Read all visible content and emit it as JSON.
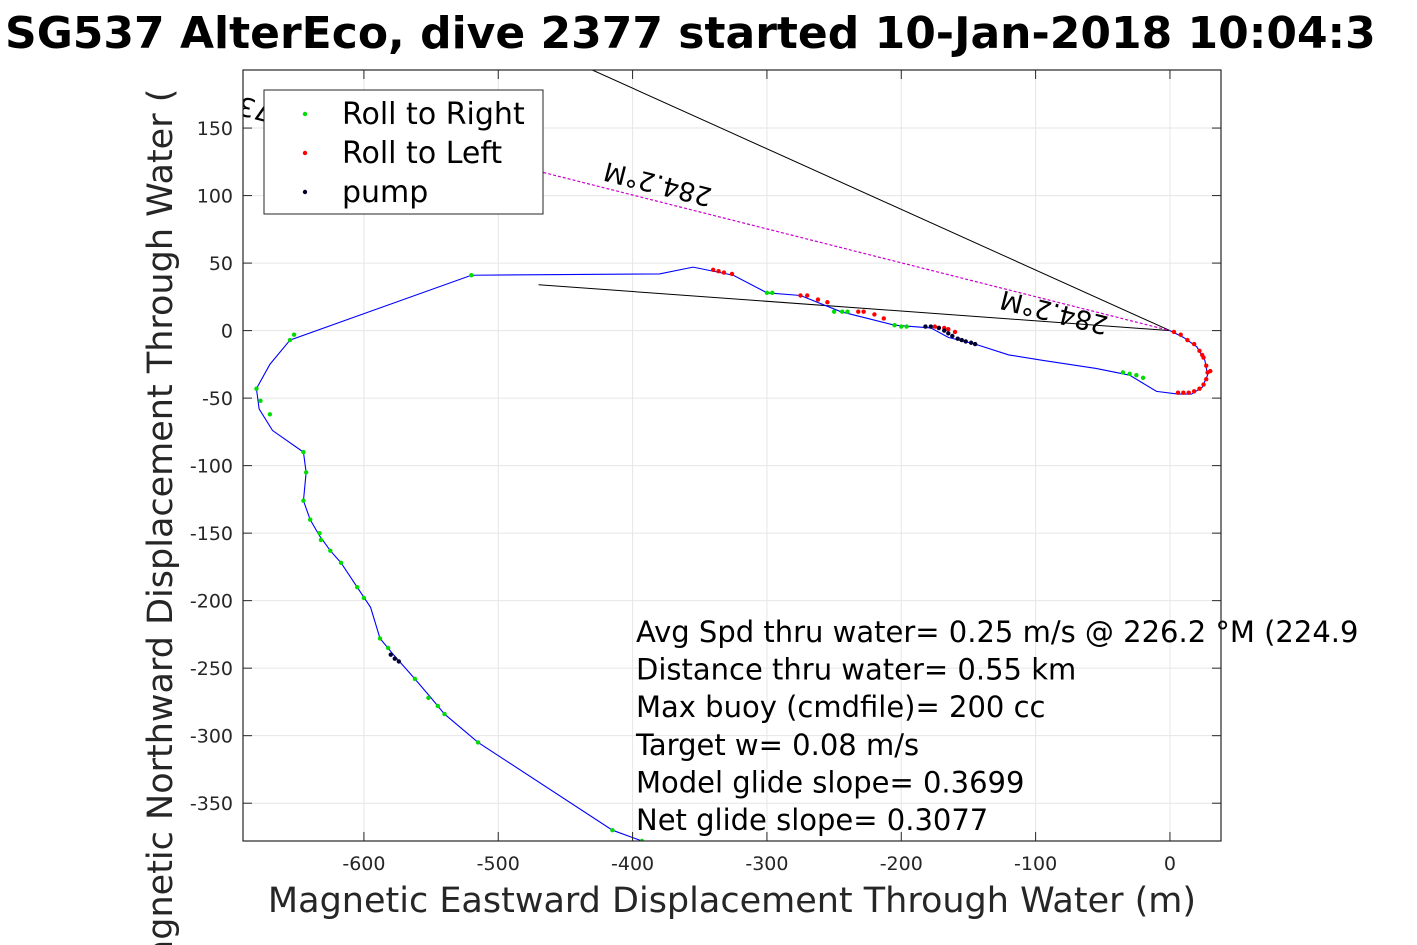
{
  "chart_data": {
    "type": "scatter",
    "title": "SG537 AlterEco, dive 2377 started 10-Jan-2018 10:04:3",
    "xlabel": "Magnetic Eastward Displacement Through Water (m)",
    "ylabel": "Magnetic Northward Displacement Through Water (",
    "xlim": [
      -690,
      38
    ],
    "ylim": [
      -378,
      193
    ],
    "xticks": [
      -600,
      -500,
      -400,
      -300,
      -200,
      -100,
      0
    ],
    "yticks": [
      -350,
      -300,
      -250,
      -200,
      -150,
      -100,
      -50,
      0,
      50,
      100,
      150
    ],
    "grid": true,
    "legend_position": "top-left",
    "legend": [
      {
        "name": "Roll to Right",
        "color": "#00dd00"
      },
      {
        "name": "Roll to Left",
        "color": "#ff0000"
      },
      {
        "name": "pump",
        "color": "#000033"
      }
    ],
    "track_color": "#0000ff",
    "track": [
      [
        0,
        0
      ],
      [
        10,
        -5
      ],
      [
        20,
        -12
      ],
      [
        26,
        -22
      ],
      [
        28,
        -33
      ],
      [
        24,
        -42
      ],
      [
        16,
        -47
      ],
      [
        6,
        -47
      ],
      [
        -10,
        -45
      ],
      [
        -30,
        -33
      ],
      [
        -55,
        -28
      ],
      [
        -95,
        -22
      ],
      [
        -120,
        -18
      ],
      [
        -145,
        -10
      ],
      [
        -165,
        -5
      ],
      [
        -178,
        2
      ],
      [
        -205,
        4
      ],
      [
        -225,
        9
      ],
      [
        -245,
        14
      ],
      [
        -275,
        26
      ],
      [
        -300,
        28
      ],
      [
        -325,
        41
      ],
      [
        -355,
        47
      ],
      [
        -380,
        42
      ],
      [
        -520,
        41
      ],
      [
        -655,
        -7
      ],
      [
        -670,
        -25
      ],
      [
        -680,
        -43
      ],
      [
        -678,
        -58
      ],
      [
        -668,
        -74
      ],
      [
        -645,
        -90
      ],
      [
        -643,
        -105
      ],
      [
        -645,
        -126
      ],
      [
        -640,
        -140
      ],
      [
        -633,
        -152
      ],
      [
        -625,
        -163
      ],
      [
        -617,
        -172
      ],
      [
        -605,
        -190
      ],
      [
        -595,
        -205
      ],
      [
        -588,
        -228
      ],
      [
        -578,
        -240
      ],
      [
        -562,
        -258
      ],
      [
        -550,
        -272
      ],
      [
        -540,
        -284
      ],
      [
        -515,
        -305
      ],
      [
        -415,
        -370
      ],
      [
        -393,
        -378
      ]
    ],
    "roll_right": [
      [
        -680,
        -43
      ],
      [
        -677,
        -52
      ],
      [
        -670,
        -62
      ],
      [
        -655,
        -7
      ],
      [
        -652,
        -3
      ],
      [
        -520,
        41
      ],
      [
        -645,
        -90
      ],
      [
        -643,
        -105
      ],
      [
        -645,
        -126
      ],
      [
        -640,
        -140
      ],
      [
        -633,
        -150
      ],
      [
        -632,
        -155
      ],
      [
        -625,
        -163
      ],
      [
        -617,
        -172
      ],
      [
        -605,
        -190
      ],
      [
        -600,
        -198
      ],
      [
        -588,
        -228
      ],
      [
        -582,
        -235
      ],
      [
        -562,
        -258
      ],
      [
        -552,
        -272
      ],
      [
        -545,
        -278
      ],
      [
        -540,
        -284
      ],
      [
        -515,
        -305
      ],
      [
        -415,
        -370
      ],
      [
        -393,
        -378
      ],
      [
        -300,
        28
      ],
      [
        -296,
        28
      ],
      [
        -250,
        14
      ],
      [
        -244,
        14
      ],
      [
        -240,
        14
      ],
      [
        -205,
        4
      ],
      [
        -200,
        3
      ],
      [
        -196,
        3
      ],
      [
        -35,
        -31
      ],
      [
        -30,
        -32
      ],
      [
        -25,
        -33
      ],
      [
        -20,
        -35
      ]
    ],
    "roll_left": [
      [
        -340,
        45
      ],
      [
        -336,
        44
      ],
      [
        -332,
        43
      ],
      [
        -326,
        42
      ],
      [
        -275,
        26
      ],
      [
        -270,
        26
      ],
      [
        -262,
        23
      ],
      [
        -255,
        21
      ],
      [
        -232,
        14
      ],
      [
        -228,
        14
      ],
      [
        -220,
        12
      ],
      [
        -213,
        9
      ],
      [
        -168,
        2
      ],
      [
        -165,
        1
      ],
      [
        -160,
        -1
      ],
      [
        -175,
        3
      ],
      [
        -172,
        2
      ],
      [
        3,
        -1
      ],
      [
        8,
        -3
      ],
      [
        13,
        -7
      ],
      [
        18,
        -10
      ],
      [
        22,
        -15
      ],
      [
        25,
        -20
      ],
      [
        27,
        -26
      ],
      [
        28,
        -31
      ],
      [
        27,
        -36
      ],
      [
        25,
        -40
      ],
      [
        22,
        -43
      ],
      [
        18,
        -45
      ],
      [
        14,
        -46
      ],
      [
        10,
        -46
      ],
      [
        6,
        -46
      ],
      [
        30,
        -30
      ],
      [
        24,
        -18
      ]
    ],
    "pump": [
      [
        -182,
        3
      ],
      [
        -178,
        3
      ],
      [
        -172,
        2
      ],
      [
        -168,
        0
      ],
      [
        -165,
        -2
      ],
      [
        -162,
        -4
      ],
      [
        -158,
        -6
      ],
      [
        -155,
        -7
      ],
      [
        -152,
        -8
      ],
      [
        -148,
        -9
      ],
      [
        -145,
        -10
      ],
      [
        -580,
        -240
      ],
      [
        -577,
        -243
      ],
      [
        -574,
        -245
      ]
    ],
    "lines": [
      [
        [
          -430,
          193
        ],
        [
          0,
          0
        ]
      ],
      [
        [
          -470,
          34
        ],
        [
          0,
          0
        ]
      ]
    ],
    "current_line": [
      [
        -470,
        118
      ],
      [
        0,
        0
      ]
    ],
    "current_line_color": "#cc00cc",
    "annotations": [
      {
        "id": "a1",
        "text": "0.21629m/s for0.60473hr =0.47087k",
        "x": -470,
        "y": 118
      },
      {
        "id": "a2",
        "text": "284.2°M",
        "x": -340,
        "y": 105
      },
      {
        "id": "a3",
        "text": "284.2°M",
        "x": -45,
        "y": 10
      }
    ],
    "info_text": [
      "Avg Spd thru water=  0.25 m/s @ 226.2 °M (224.9",
      "Distance thru water=  0.55 km",
      "Max buoy (cmdfile)= 200 cc",
      "Target w= 0.08 m/s",
      "Model glide slope= 0.3699",
      "Net glide slope= 0.3077"
    ]
  }
}
